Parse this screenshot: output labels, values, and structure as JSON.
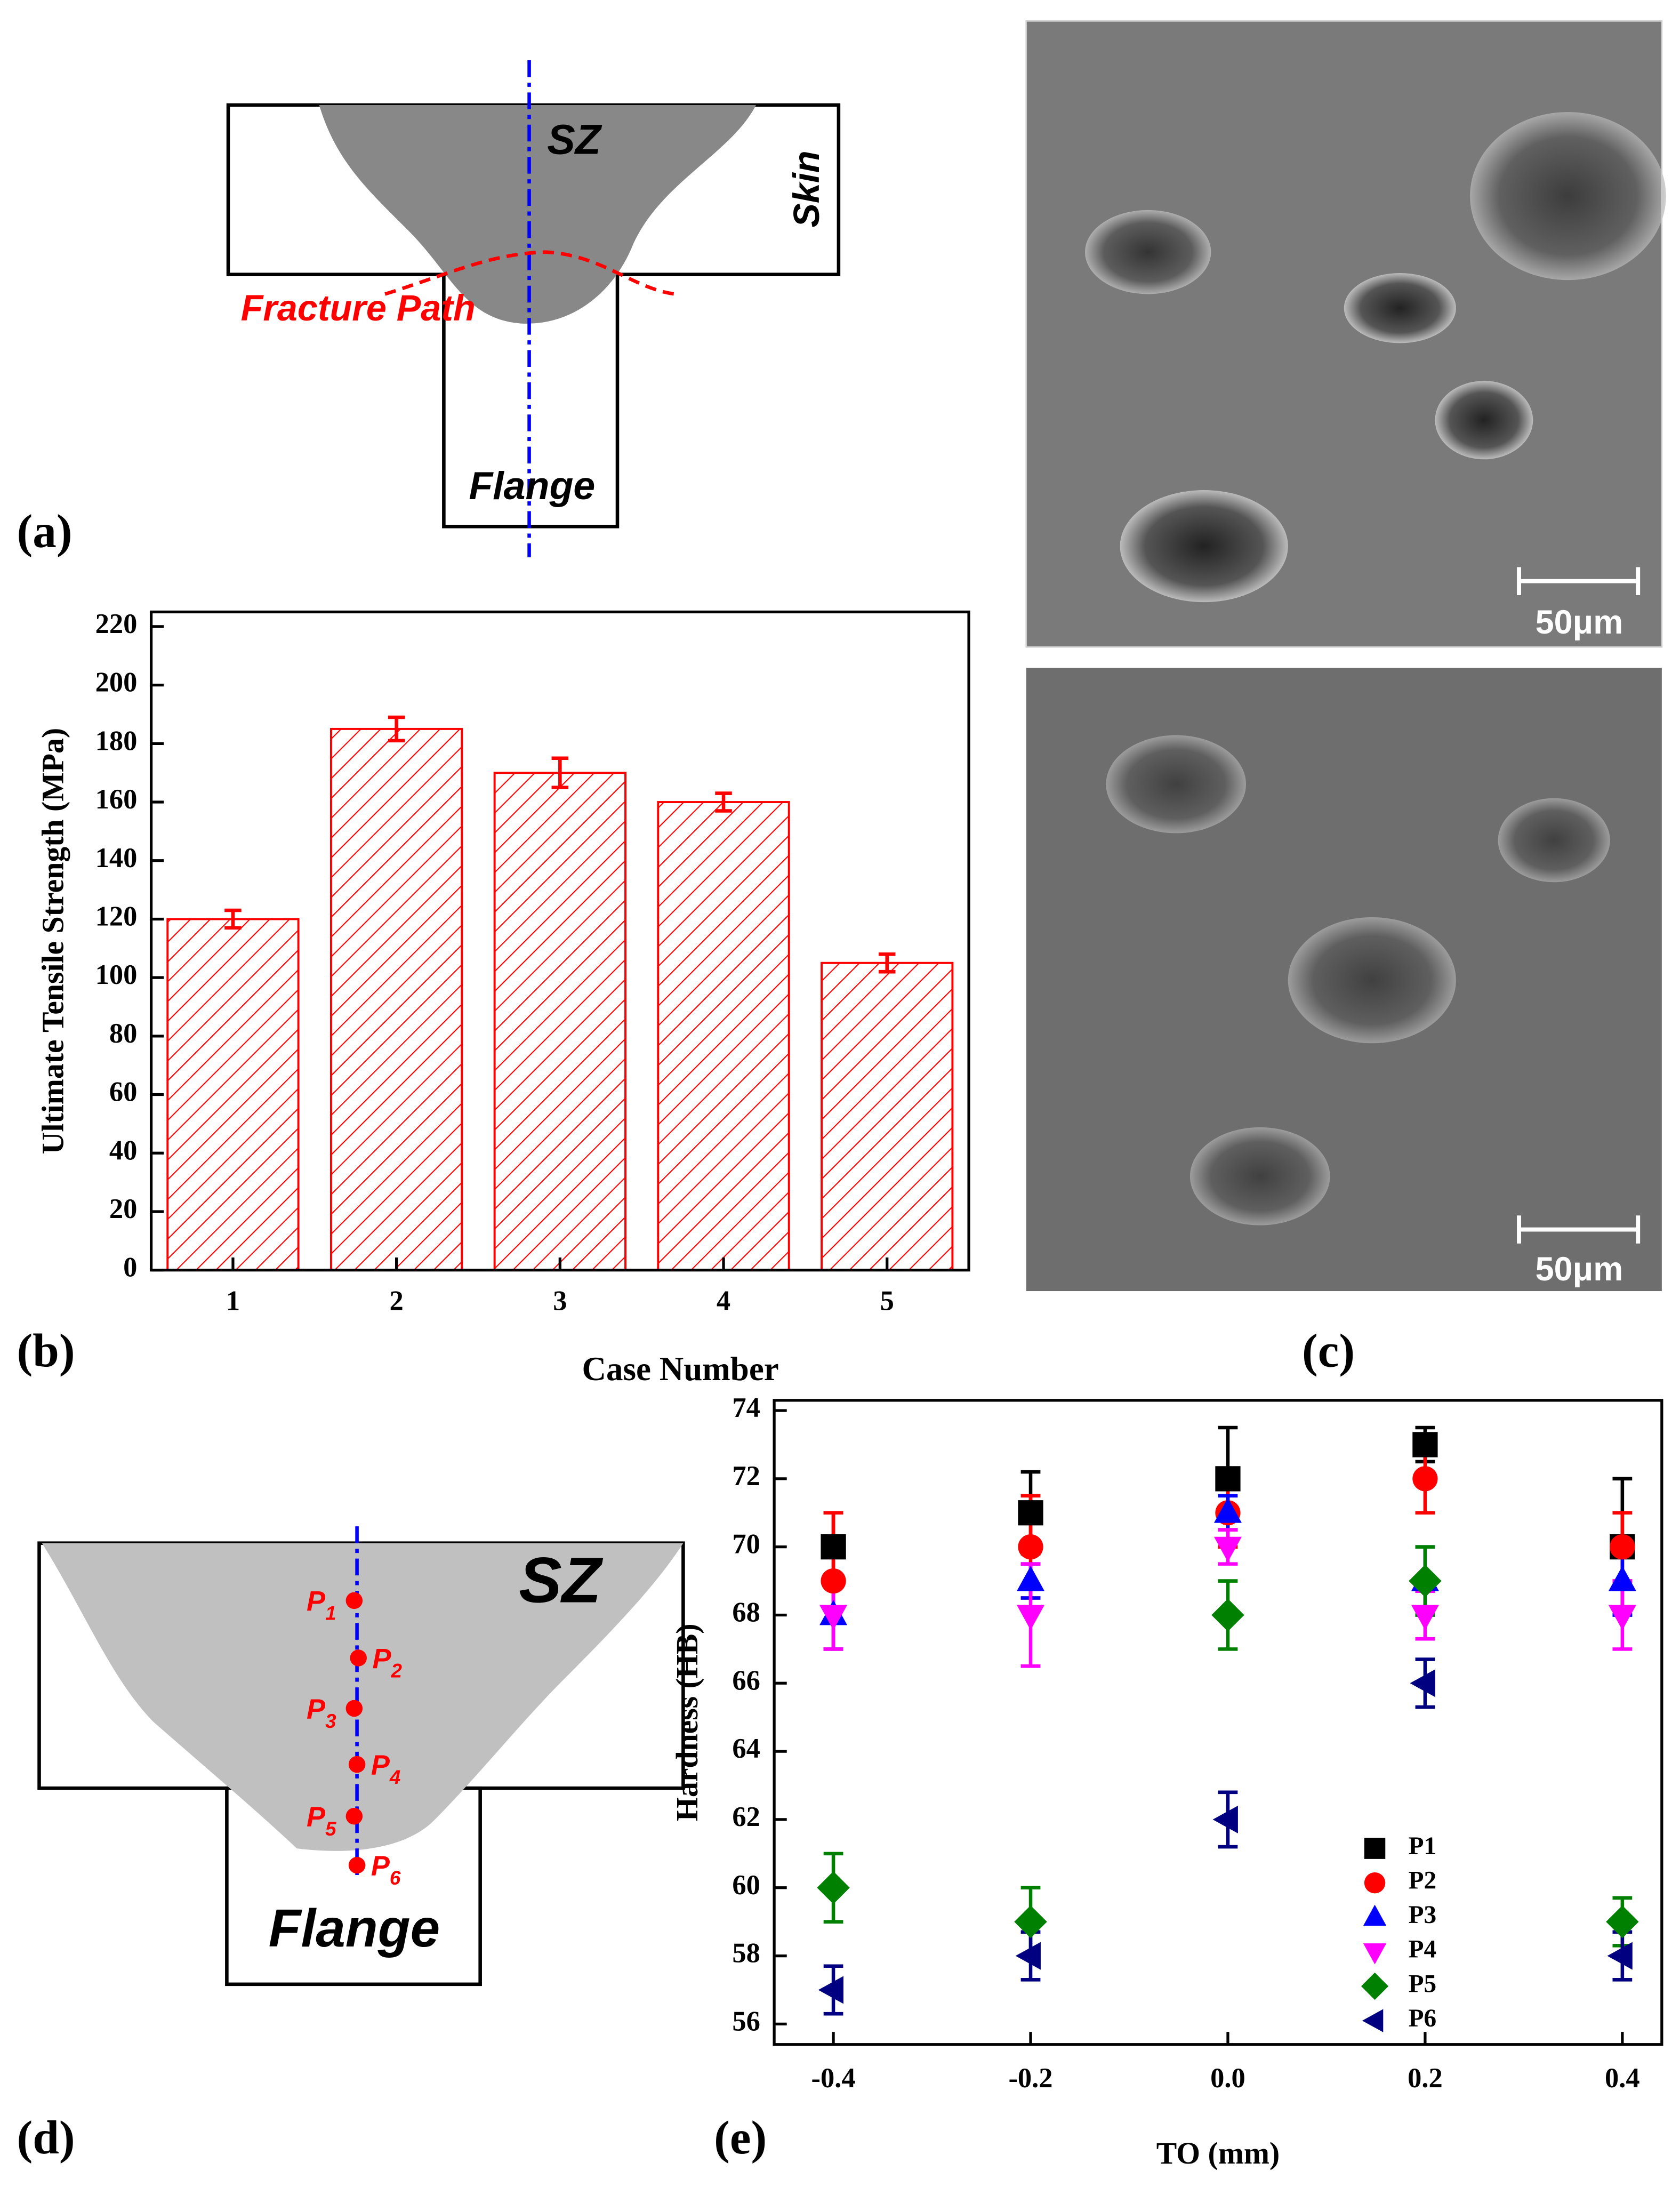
{
  "panels": [
    "(a)",
    "(b)",
    "(c)",
    "(d)",
    "(e)"
  ],
  "diagram_a": {
    "stir_zone": "SZ",
    "skin": "Skin",
    "fracture_path": "Fracture Path",
    "flange": "Flange"
  },
  "micrographs": [
    {
      "scale_bar": "50μm"
    },
    {
      "scale_bar": "50μm"
    }
  ],
  "diagram_d": {
    "stir_zone": "SZ",
    "flange": "Flange",
    "points": [
      {
        "name": "P",
        "sub": "1"
      },
      {
        "name": "P",
        "sub": "2"
      },
      {
        "name": "P",
        "sub": "3"
      },
      {
        "name": "P",
        "sub": "4"
      },
      {
        "name": "P",
        "sub": "5"
      },
      {
        "name": "P",
        "sub": "6"
      }
    ]
  },
  "chart_data": [
    {
      "type": "bar",
      "categories": [
        "1",
        "2",
        "3",
        "4",
        "5"
      ],
      "values": [
        120,
        185,
        170,
        160,
        105
      ],
      "errors": [
        3,
        4,
        5,
        3,
        3
      ],
      "color": "#ff0000",
      "hatch": true,
      "xlabel": "Case Number",
      "ylabel": "Ultimate Tensile Strength (MPa)",
      "ylim": [
        0,
        225
      ],
      "yticks": [
        0,
        20,
        40,
        60,
        80,
        100,
        120,
        140,
        160,
        180,
        200,
        220
      ]
    },
    {
      "type": "scatter",
      "xlabel": "TO (mm)",
      "ylabel": "Hardness (HB)",
      "x": [
        -0.4,
        -0.2,
        0,
        0.2,
        0.4
      ],
      "xlim": [
        -0.46,
        0.44
      ],
      "xticks": [
        -0.4,
        -0.2,
        {
          "value": 0,
          "label": "0.0"
        },
        0.2,
        0.4
      ],
      "ylim": [
        55.4,
        74.3
      ],
      "yticks": [
        56,
        58,
        60,
        62,
        64,
        66,
        68,
        70,
        72,
        74
      ],
      "legend": "lower right",
      "series": [
        {
          "name": "P1",
          "color": "#000000",
          "marker": "square",
          "values": [
            70,
            71,
            72,
            73,
            70
          ],
          "errors": [
            1,
            1.2,
            1.5,
            0.5,
            2
          ]
        },
        {
          "name": "P2",
          "color": "#ff0000",
          "marker": "circle",
          "values": [
            69,
            70,
            71,
            72,
            70
          ],
          "errors": [
            2,
            1.5,
            1,
            1,
            1
          ]
        },
        {
          "name": "P3",
          "color": "#0000ff",
          "marker": "triangle-up",
          "values": [
            68,
            69,
            71,
            69,
            69
          ],
          "errors": [
            1,
            0.5,
            0.5,
            1,
            1
          ]
        },
        {
          "name": "P4",
          "color": "#ff00ff",
          "marker": "triangle-down",
          "values": [
            68,
            68,
            70,
            68,
            68
          ],
          "errors": [
            1,
            1.5,
            0.5,
            0.7,
            1
          ]
        },
        {
          "name": "P5",
          "color": "#008000",
          "marker": "diamond",
          "values": [
            60,
            59,
            68,
            69,
            59
          ],
          "errors": [
            1,
            1,
            1,
            1,
            0.7
          ]
        },
        {
          "name": "P6",
          "color": "#000080",
          "marker": "triangle-left",
          "values": [
            57,
            58,
            62,
            66,
            58
          ],
          "errors": [
            0.7,
            0.7,
            0.8,
            0.7,
            0.7
          ]
        }
      ]
    }
  ]
}
